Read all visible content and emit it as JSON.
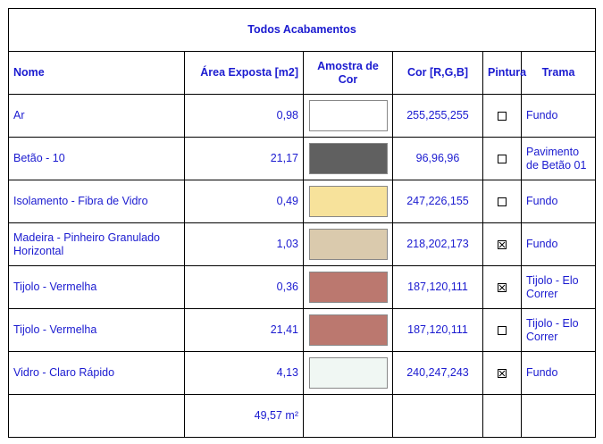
{
  "table": {
    "title": "Todos Acabamentos",
    "headers": [
      "Nome",
      "Área Exposta [m2]",
      "Amostra de Cor",
      "Cor [R,G,B]",
      "Pintura",
      "Trama"
    ],
    "rows": [
      {
        "name": "Ar",
        "area": "0,98",
        "rgb": "255,255,255",
        "paint": false,
        "hatch": "Fundo"
      },
      {
        "name": "Betão - 10",
        "area": "21,17",
        "rgb": "96,96,96",
        "paint": false,
        "hatch": "Pavimento de Betão 01"
      },
      {
        "name": "Isolamento - Fibra de Vidro",
        "area": "0,49",
        "rgb": "247,226,155",
        "paint": false,
        "hatch": "Fundo"
      },
      {
        "name": "Madeira - Pinheiro Granulado Horizontal",
        "area": "1,03",
        "rgb": "218,202,173",
        "paint": true,
        "hatch": "Fundo"
      },
      {
        "name": "Tijolo - Vermelha",
        "area": "0,36",
        "rgb": "187,120,111",
        "paint": true,
        "hatch": "Tijolo - Elo Correr"
      },
      {
        "name": "Tijolo - Vermelha",
        "area": "21,41",
        "rgb": "187,120,111",
        "paint": false,
        "hatch": "Tijolo - Elo Correr"
      },
      {
        "name": "Vidro - Claro Rápido",
        "area": "4,13",
        "rgb": "240,247,243",
        "paint": true,
        "hatch": "Fundo"
      }
    ],
    "total": "49,57 m²"
  }
}
